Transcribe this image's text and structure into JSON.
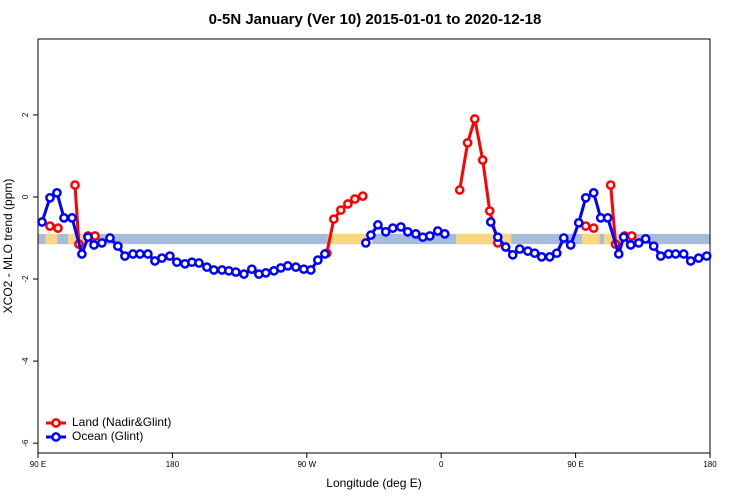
{
  "chart_data": {
    "type": "line",
    "title": "0-5N January (Ver 10)   2015-01-01 to 2020-12-18",
    "x_label": "Longitude (deg E)",
    "y_label": "XCO2 - MLO trend (ppm)",
    "xlim": [
      90,
      540
    ],
    "xticks": [
      {
        "value": 90,
        "label": "90 E"
      },
      {
        "value": 180,
        "label": "180"
      },
      {
        "value": 270,
        "label": "90 W"
      },
      {
        "value": 360,
        "label": "0"
      },
      {
        "value": 450,
        "label": "90 E"
      },
      {
        "value": 540,
        "label": "180"
      }
    ],
    "ylim": [
      -6.24,
      3.85
    ],
    "yticks": [
      -6,
      -4,
      -2,
      0,
      2
    ],
    "legend": "bottom-left",
    "band": {
      "ylim": [
        -1.15,
        -0.9
      ],
      "color": "#a7bcd9",
      "land_color": "#f9d77e",
      "land_segments": [
        [
          95,
          103
        ],
        [
          110,
          130
        ],
        [
          284,
          314
        ],
        [
          370,
          407
        ],
        [
          454,
          466
        ],
        [
          469,
          486
        ]
      ]
    },
    "series": [
      {
        "name": "Land (Nadir&Glint)",
        "color": "#ff0000",
        "x": [
          98.0,
          103.4,
          null,
          114.8,
          117.4,
          null,
          123.5,
          128.2,
          null,
          283.4,
          288.1,
          292.8,
          297.5,
          302.2,
          307.5,
          null,
          372.4,
          377.7,
          382.5,
          387.8,
          392.5,
          397.9,
          null,
          456.8,
          462.1,
          null,
          473.5,
          476.8,
          null,
          482.9,
          487.6
        ],
        "values": [
          -0.71,
          -0.76,
          null,
          0.29,
          -1.15,
          null,
          -0.95,
          -0.95,
          null,
          -1.37,
          -0.54,
          -0.32,
          -0.17,
          -0.05,
          0.02,
          null,
          0.17,
          1.32,
          1.9,
          0.9,
          -0.34,
          -1.12,
          null,
          -0.71,
          -0.76,
          null,
          0.29,
          -1.15,
          null,
          -0.95,
          -0.95
        ]
      },
      {
        "name": "Ocean (Glint)",
        "color": "#0000ff",
        "x": [
          92.7,
          98.0,
          102.7,
          107.4,
          112.8,
          119.4,
          123.5,
          127.5,
          132.8,
          138.2,
          143.5,
          148.2,
          153.6,
          158.3,
          163.6,
          168.3,
          173.0,
          178.3,
          183.0,
          188.4,
          193.1,
          197.8,
          203.1,
          207.8,
          213.2,
          217.8,
          222.5,
          227.9,
          233.2,
          237.9,
          242.6,
          248.0,
          252.6,
          257.3,
          262.7,
          268.0,
          272.7,
          277.4,
          282.1,
          null,
          309.5,
          312.9,
          317.6,
          322.9,
          327.6,
          333.0,
          337.6,
          343.0,
          347.7,
          352.4,
          357.7,
          362.4,
          null,
          393.2,
          397.9,
          403.2,
          407.9,
          412.6,
          418.0,
          422.6,
          427.3,
          432.7,
          437.4,
          442.1,
          446.7,
          452.1,
          456.8,
          462.1,
          466.8,
          471.5,
          478.9,
          482.2,
          486.9,
          492.3,
          496.9,
          502.3,
          507.0,
          512.3,
          517.0,
          522.4,
          527.1,
          532.4,
          537.8
        ],
        "values": [
          -0.61,
          -0.02,
          0.1,
          -0.51,
          -0.51,
          -1.39,
          -0.98,
          -1.17,
          -1.12,
          -1.0,
          -1.2,
          -1.44,
          -1.39,
          -1.39,
          -1.39,
          -1.56,
          -1.49,
          -1.44,
          -1.59,
          -1.63,
          -1.59,
          -1.61,
          -1.71,
          -1.78,
          -1.78,
          -1.8,
          -1.83,
          -1.88,
          -1.76,
          -1.88,
          -1.85,
          -1.8,
          -1.73,
          -1.68,
          -1.71,
          -1.76,
          -1.78,
          -1.54,
          -1.39,
          null,
          -1.12,
          -0.93,
          -0.68,
          -0.85,
          -0.76,
          -0.73,
          -0.85,
          -0.9,
          -0.98,
          -0.95,
          -0.83,
          -0.9,
          null,
          -0.61,
          -0.98,
          -1.22,
          -1.41,
          -1.27,
          -1.32,
          -1.37,
          -1.46,
          -1.46,
          -1.37,
          -1.0,
          -1.17,
          -0.63,
          -0.02,
          0.1,
          -0.51,
          -0.51,
          -1.39,
          -0.98,
          -1.17,
          -1.12,
          -1.02,
          -1.2,
          -1.44,
          -1.39,
          -1.39,
          -1.39,
          -1.56,
          -1.49,
          -1.44
        ]
      }
    ]
  }
}
